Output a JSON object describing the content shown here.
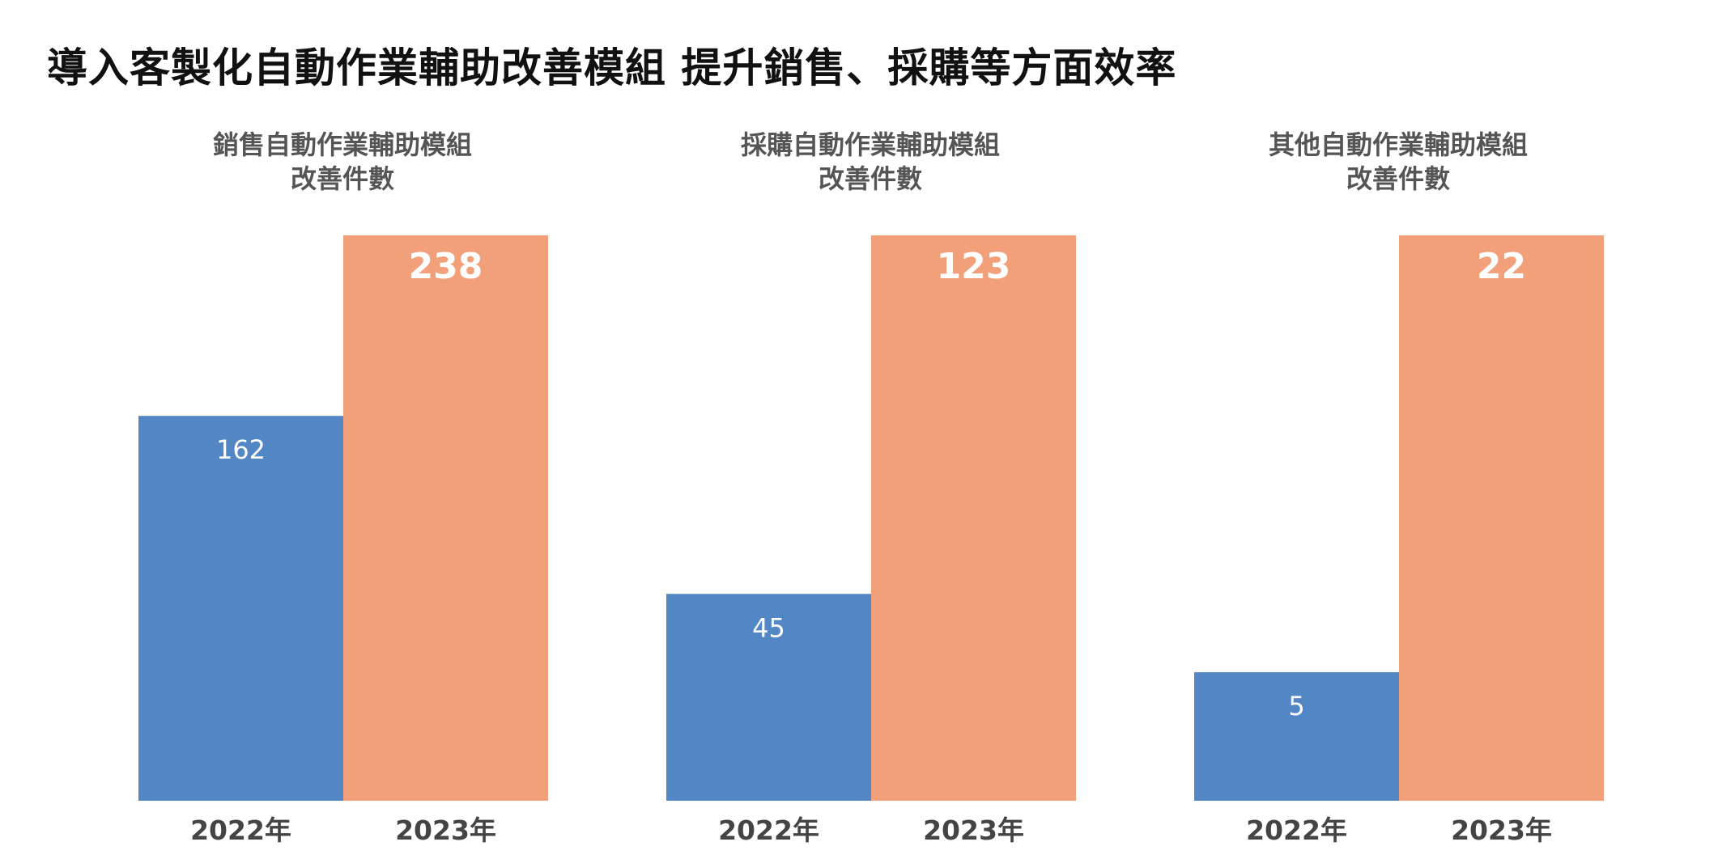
{
  "title": "導入客製化自動作業輔助改善模組  提升銷售、採購等方面效率",
  "colors": {
    "y2022": "#5286C5",
    "y2023": "#F2A07A"
  },
  "chart_data": [
    {
      "type": "bar",
      "title": [
        "銷售自動作業輔助模組",
        "改善件數"
      ],
      "categories": [
        "2022年",
        "2023年"
      ],
      "values": [
        162,
        238
      ],
      "ylim": [
        0,
        238
      ]
    },
    {
      "type": "bar",
      "title": [
        "採購自動作業輔助模組",
        "改善件數"
      ],
      "categories": [
        "2022年",
        "2023年"
      ],
      "values": [
        45,
        123
      ],
      "ylim": [
        0,
        123
      ]
    },
    {
      "type": "bar",
      "title": [
        "其他自動作業輔助模組",
        "改善件數"
      ],
      "categories": [
        "2022年",
        "2023年"
      ],
      "values": [
        5,
        22
      ],
      "ylim": [
        0,
        22
      ]
    }
  ]
}
